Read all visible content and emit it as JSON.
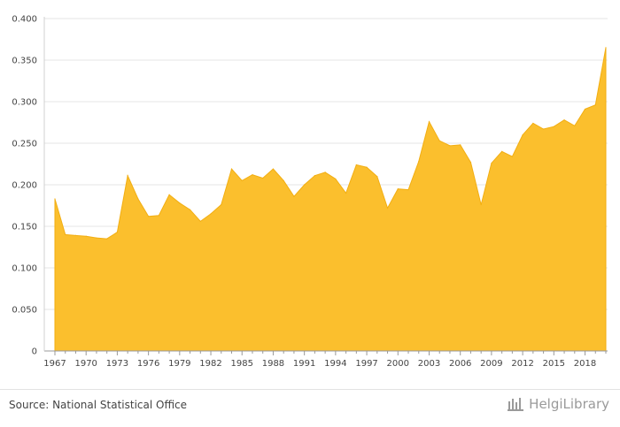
{
  "footer": {
    "source_text": "Source: National Statistical Office",
    "brand_text": "HelgiLibrary",
    "brand_icon": "helgilibrary-logo-icon"
  },
  "colors": {
    "area_fill": "#FBBF2D",
    "area_stroke": "#F2AE12",
    "grid": "#e6e6e6",
    "axis": "#999999"
  },
  "chart_data": {
    "type": "area",
    "title": "",
    "xlabel": "",
    "ylabel": "",
    "ylim": [
      0,
      0.4
    ],
    "xlim": [
      1967,
      2020
    ],
    "grid": true,
    "legend": "none",
    "y_ticks": [
      0,
      0.05,
      0.1,
      0.15,
      0.2,
      0.25,
      0.3,
      0.35,
      0.4
    ],
    "y_tick_labels": [
      "0",
      "0.050",
      "0.100",
      "0.150",
      "0.200",
      "0.250",
      "0.300",
      "0.350",
      "0.400"
    ],
    "x_tick_labels": [
      "1967",
      "1970",
      "1973",
      "1976",
      "1979",
      "1982",
      "1985",
      "1988",
      "1991",
      "1994",
      "1997",
      "2000",
      "2003",
      "2006",
      "2009",
      "2012",
      "2015",
      "2018"
    ],
    "x": [
      1967,
      1968,
      1969,
      1970,
      1971,
      1972,
      1973,
      1974,
      1975,
      1976,
      1977,
      1978,
      1979,
      1980,
      1981,
      1982,
      1983,
      1984,
      1985,
      1986,
      1987,
      1988,
      1989,
      1990,
      1991,
      1992,
      1993,
      1994,
      1995,
      1996,
      1997,
      1998,
      1999,
      2000,
      2001,
      2002,
      2003,
      2004,
      2005,
      2006,
      2007,
      2008,
      2009,
      2010,
      2011,
      2012,
      2013,
      2014,
      2015,
      2016,
      2017,
      2018,
      2019,
      2020
    ],
    "values": [
      0.183,
      0.14,
      0.139,
      0.138,
      0.136,
      0.135,
      0.143,
      0.211,
      0.183,
      0.162,
      0.163,
      0.188,
      0.178,
      0.17,
      0.156,
      0.165,
      0.176,
      0.219,
      0.205,
      0.212,
      0.208,
      0.219,
      0.205,
      0.186,
      0.2,
      0.211,
      0.215,
      0.207,
      0.19,
      0.224,
      0.221,
      0.21,
      0.172,
      0.195,
      0.194,
      0.228,
      0.276,
      0.253,
      0.247,
      0.248,
      0.227,
      0.176,
      0.226,
      0.24,
      0.234,
      0.26,
      0.274,
      0.267,
      0.27,
      0.278,
      0.271,
      0.291,
      0.296,
      0.365
    ]
  }
}
